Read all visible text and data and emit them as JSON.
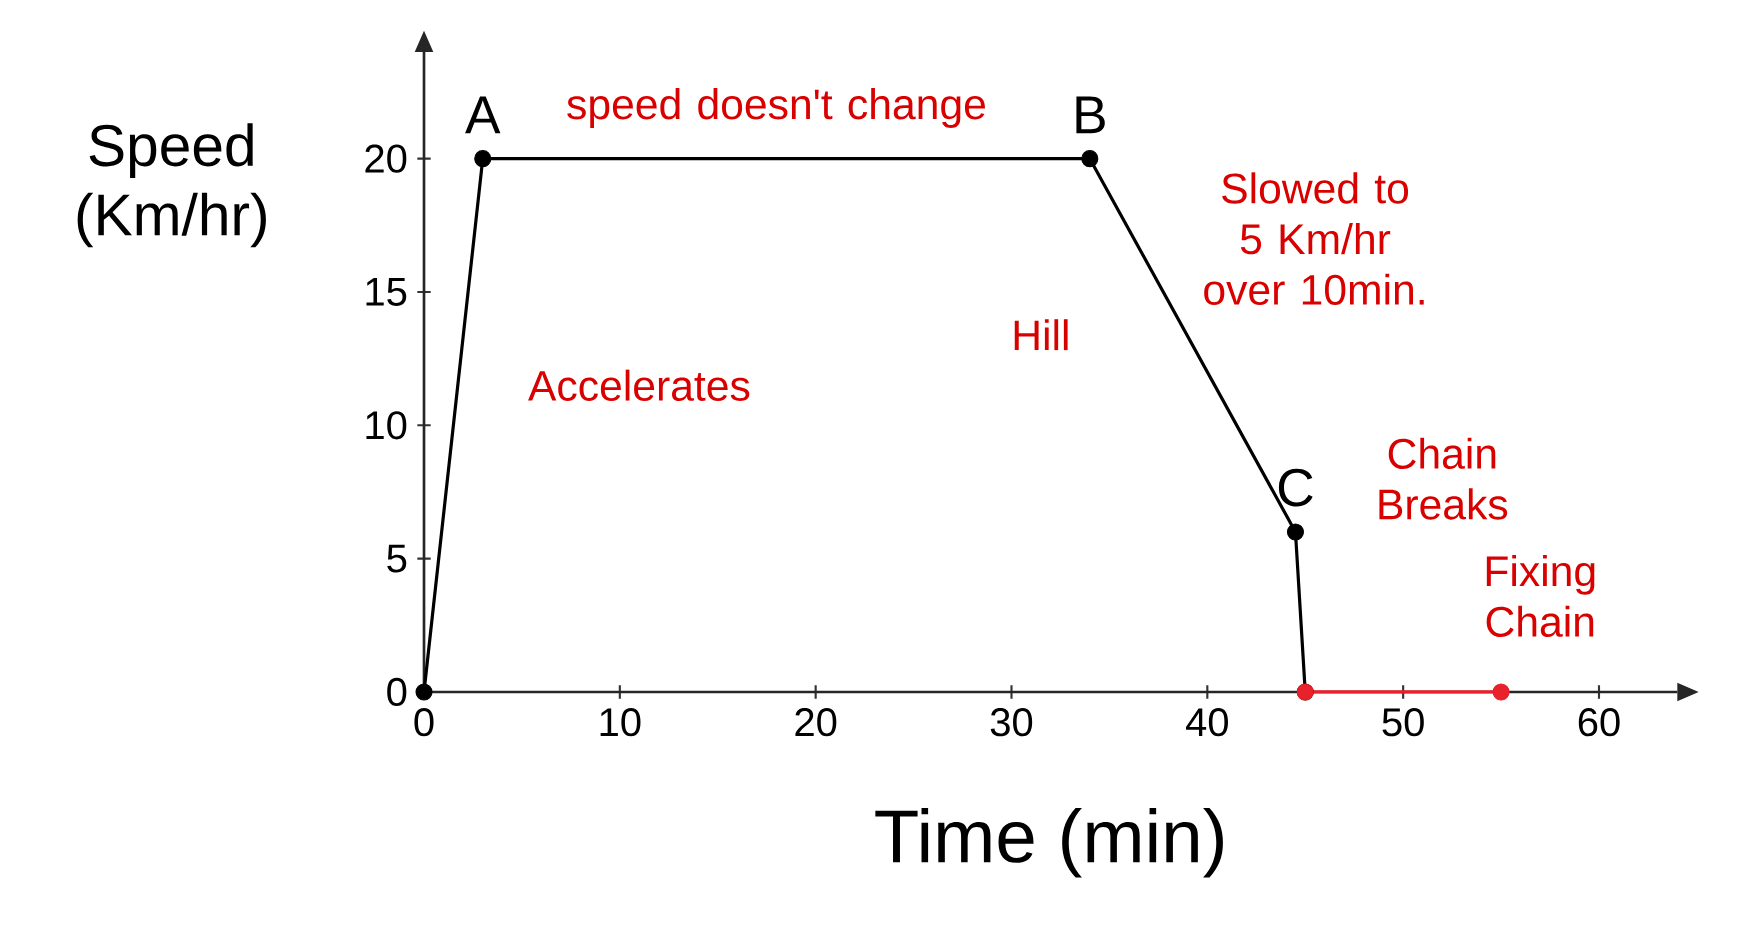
{
  "chart_data": {
    "type": "line",
    "xlabel": "Time (min)",
    "ylabel": "Speed (Km/hr)",
    "series": [
      {
        "color": "#000000",
        "x": [
          0,
          3,
          34,
          44.5,
          45
        ],
        "values": [
          0,
          20,
          20,
          6,
          0
        ]
      },
      {
        "color": "#e8212b",
        "x": [
          45,
          55
        ],
        "values": [
          0,
          0
        ]
      }
    ],
    "xlim": [
      0,
      64
    ],
    "ylim": [
      0,
      24
    ],
    "xticks": [
      0,
      10,
      20,
      30,
      40,
      50,
      60
    ],
    "yticks": [
      0,
      5,
      10,
      15,
      20
    ],
    "marker": "circle",
    "line_style": "solid",
    "annotations": [
      {
        "text": "A",
        "x": 3,
        "y": 20
      },
      {
        "text": "B",
        "x": 34,
        "y": 20
      },
      {
        "text": "C",
        "x": 44.5,
        "y": 6
      },
      "speed doesn't change",
      "Accelerates",
      "Hill",
      "Slowed to 5 Km/hr over 10min.",
      "Chain Breaks",
      "Fixing Chain"
    ]
  }
}
